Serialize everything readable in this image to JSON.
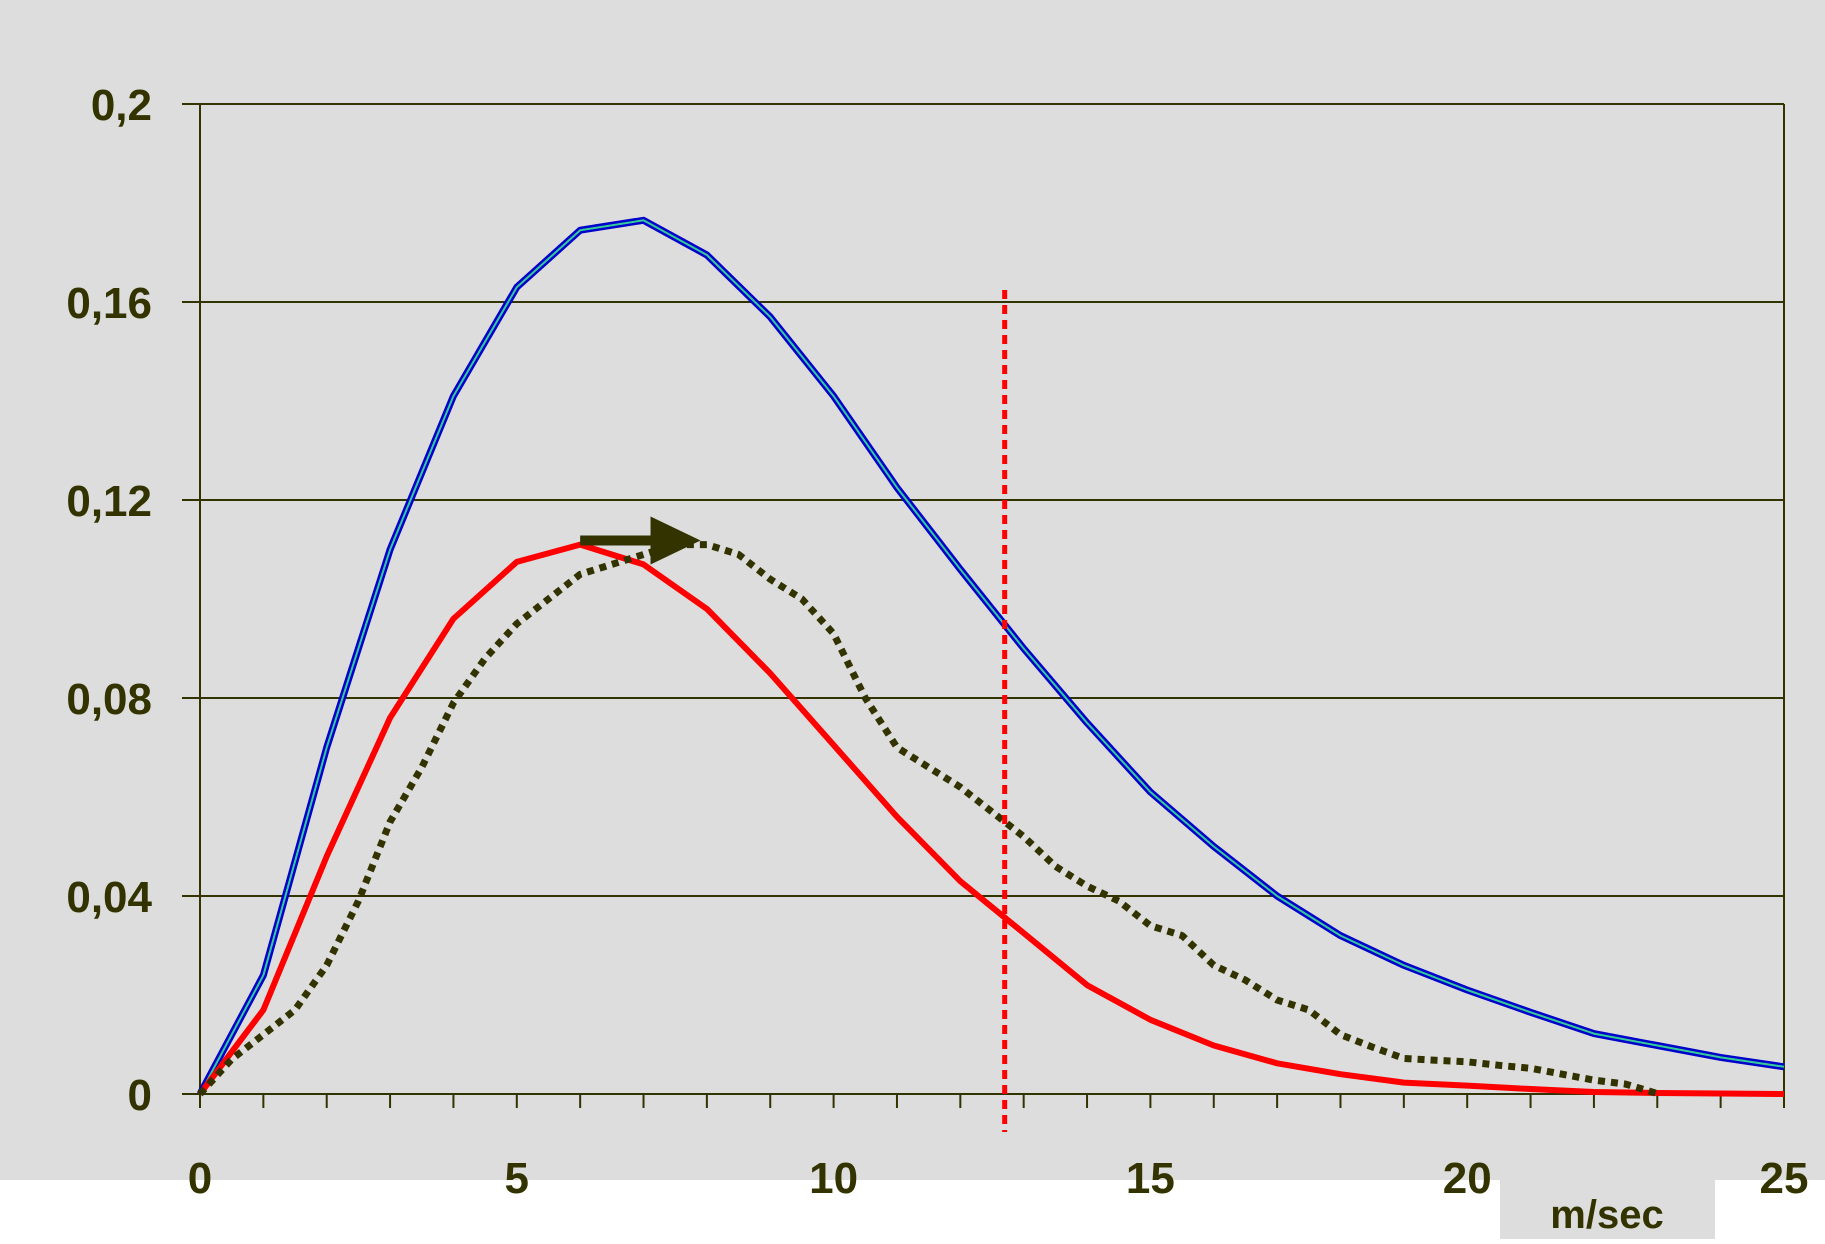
{
  "chart_data": {
    "type": "line",
    "title": "",
    "xlabel": "m/sec",
    "ylabel": "",
    "xlim": [
      0,
      25
    ],
    "ylim": [
      0,
      0.2
    ],
    "x_ticks": [
      0,
      5,
      10,
      15,
      20,
      25
    ],
    "x_tick_labels": [
      "0",
      "5",
      "10",
      "15",
      "20",
      "25"
    ],
    "y_ticks": [
      0,
      0.04,
      0.08,
      0.12,
      0.16,
      0.2
    ],
    "y_tick_labels": [
      "0",
      "0,04",
      "0,08",
      "0,12",
      "0,16",
      "0,2"
    ],
    "grid": "horizontal",
    "legend": "none",
    "series": [
      {
        "color": "#0000cc",
        "accent_color": "#33cc99",
        "style": "solid",
        "x": [
          0,
          1,
          2,
          3,
          4,
          5,
          6,
          7,
          8,
          9,
          10,
          11,
          12,
          13,
          14,
          15,
          16,
          17,
          18,
          19,
          20,
          21,
          22,
          23,
          24,
          25
        ],
        "y": [
          0,
          0.024,
          0.07,
          0.11,
          0.141,
          0.163,
          0.1745,
          0.1765,
          0.1695,
          0.157,
          0.141,
          0.1225,
          0.106,
          0.09,
          0.075,
          0.061,
          0.05,
          0.04,
          0.032,
          0.026,
          0.021,
          0.0165,
          0.0122,
          0.0098,
          0.0074,
          0.0055
        ]
      },
      {
        "color": "#ff0000",
        "style": "solid",
        "x": [
          0,
          1,
          2,
          3,
          4,
          5,
          6,
          7,
          8,
          9,
          10,
          11,
          12,
          13,
          14,
          15,
          16,
          17,
          18,
          19,
          20,
          21,
          22,
          23,
          24,
          25
        ],
        "y": [
          0,
          0.017,
          0.048,
          0.076,
          0.096,
          0.1075,
          0.111,
          0.107,
          0.098,
          0.085,
          0.0705,
          0.056,
          0.043,
          0.0325,
          0.022,
          0.015,
          0.0098,
          0.0062,
          0.004,
          0.0023,
          0.0017,
          0.001,
          0.0004,
          0.0002,
          0.0001,
          0
        ]
      },
      {
        "color": "#333300",
        "style": "dotted",
        "x": [
          0,
          0.5,
          1,
          1.5,
          2,
          2.5,
          3,
          3.5,
          4,
          4.5,
          5,
          5.5,
          6,
          6.5,
          7,
          7.5,
          8,
          8.5,
          9,
          9.5,
          10,
          10.5,
          11,
          11.5,
          12,
          12.5,
          13,
          13.5,
          14,
          14.5,
          15,
          15.5,
          16,
          16.5,
          17,
          17.5,
          18,
          18.5,
          19,
          19.5,
          20,
          20.5,
          21,
          21.5,
          22,
          22.5,
          23
        ],
        "y": [
          0,
          0.007,
          0.012,
          0.017,
          0.026,
          0.039,
          0.055,
          0.066,
          0.079,
          0.088,
          0.095,
          0.1,
          0.105,
          0.107,
          0.109,
          0.111,
          0.111,
          0.109,
          0.104,
          0.1,
          0.093,
          0.08,
          0.07,
          0.066,
          0.062,
          0.057,
          0.052,
          0.046,
          0.042,
          0.039,
          0.034,
          0.032,
          0.026,
          0.023,
          0.019,
          0.017,
          0.012,
          0.0095,
          0.0072,
          0.0068,
          0.0065,
          0.0058,
          0.0052,
          0.004,
          0.0028,
          0.002,
          0.0001
        ]
      }
    ],
    "annotations": [
      {
        "type": "vertical-line",
        "x": 12.7,
        "color": "#ff0000",
        "style": "dotted"
      },
      {
        "type": "arrow",
        "x_from": 6,
        "x_to": 7.9,
        "y": 0.111,
        "color": "#333300"
      }
    ],
    "colors": {
      "plot_background": "#dddddd",
      "gridline": "#333300",
      "text": "#333300"
    }
  }
}
